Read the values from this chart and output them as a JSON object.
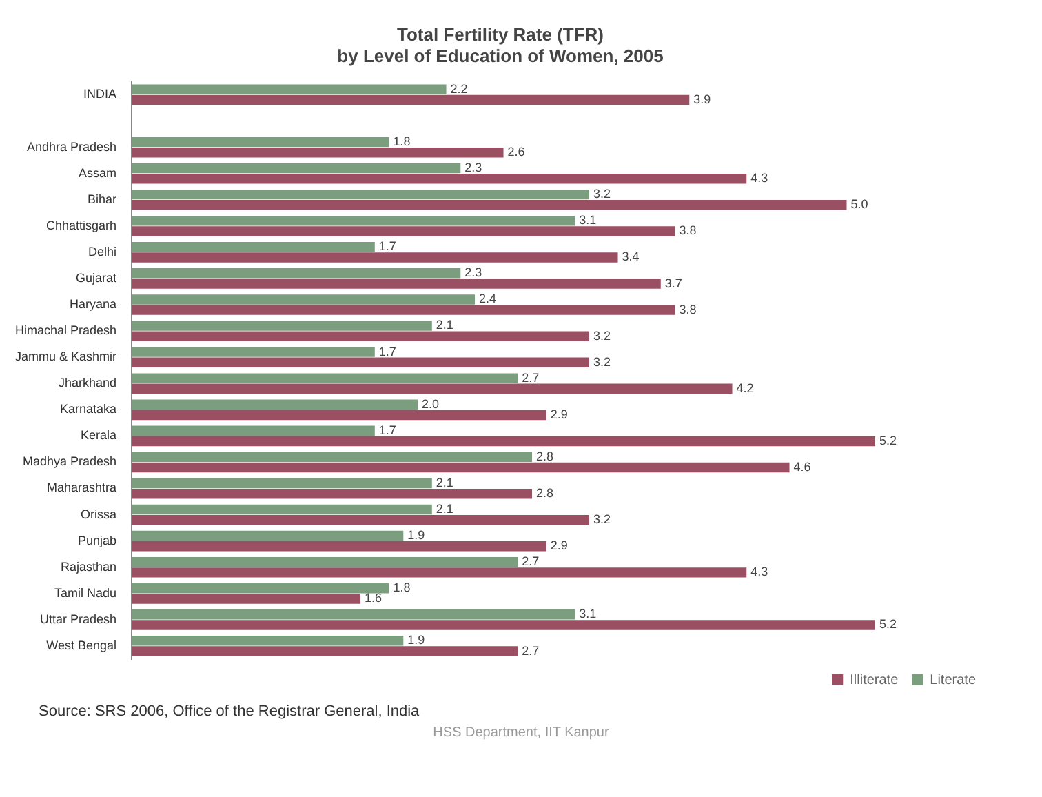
{
  "chart_data": {
    "type": "bar",
    "orientation": "horizontal",
    "title": "Total Fertility Rate (TFR)\nby Level of Education of Women, 2005",
    "categories": [
      "INDIA",
      null,
      "Andhra Pradesh",
      "Assam",
      "Bihar",
      "Chhattisgarh",
      "Delhi",
      "Gujarat",
      "Haryana",
      "Himachal Pradesh",
      "Jammu & Kashmir",
      "Jharkhand",
      "Karnataka",
      "Kerala",
      "Madhya Pradesh",
      "Maharashtra",
      "Orissa",
      "Punjab",
      "Rajasthan",
      "Tamil Nadu",
      "Uttar Pradesh",
      "West Bengal"
    ],
    "series": [
      {
        "name": "Literate",
        "color": "#7a9e7e",
        "values": [
          2.2,
          null,
          1.8,
          2.3,
          3.2,
          3.1,
          1.7,
          2.3,
          2.4,
          2.1,
          1.7,
          2.7,
          2.0,
          1.7,
          2.8,
          2.1,
          2.1,
          1.9,
          2.7,
          1.8,
          3.1,
          1.9
        ],
        "value_labels": [
          "2.2",
          null,
          "1.8",
          "2.3",
          "3.2",
          "3.1",
          "1.7",
          "2.3",
          "2.4",
          "2.1",
          "1.7",
          "2.7",
          "2.0",
          "1.7",
          "2.8",
          "2.1",
          "2.1",
          "1.9",
          "2.7",
          "1.8",
          "3.1",
          "1.9"
        ]
      },
      {
        "name": "Illiterate",
        "color": "#9b4f63",
        "values": [
          3.9,
          null,
          2.6,
          4.3,
          5.0,
          3.8,
          3.4,
          3.7,
          3.8,
          3.2,
          3.2,
          4.2,
          2.9,
          5.2,
          4.6,
          2.8,
          3.2,
          2.9,
          4.3,
          1.6,
          5.2,
          2.7
        ],
        "value_labels": [
          "3.9",
          null,
          "2.6",
          "4.3",
          "5.0",
          "3.8",
          "3.4",
          "3.7",
          "3.8",
          "3.2",
          "3.2",
          "4.2",
          "2.9",
          "5.2",
          "4.6",
          "2.8",
          "3.2",
          "2.9",
          "4.3",
          "1.6",
          "5.2",
          "2.7"
        ]
      }
    ],
    "legend": "bottom right",
    "grid": false,
    "tick_labels": "y",
    "annotations": [
      "Source: SRS 2006, Office of the Registrar General, India",
      "HSS Department, IIT Kanpur"
    ]
  }
}
